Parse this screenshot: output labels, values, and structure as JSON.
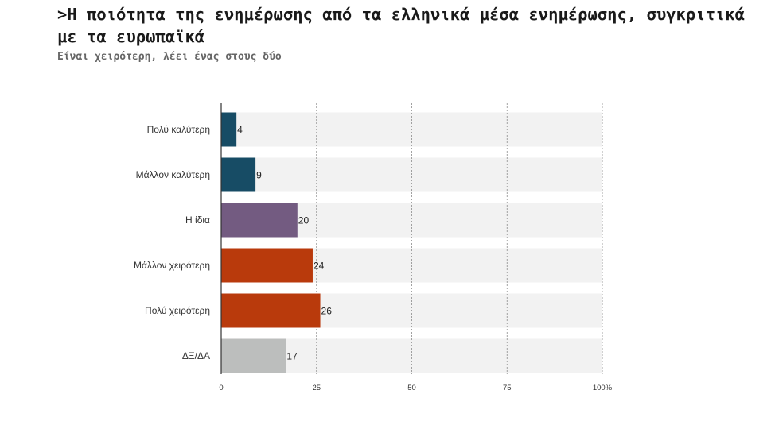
{
  "title": ">Η ποιότητα της ενημέρωσης από τα ελληνικά μέσα ενημέρωσης, συγκριτικά με τα ευρωπαϊκά",
  "subtitle": "Είναι χειρότερη, λέει ένας στους δύο",
  "chart_data": {
    "type": "bar",
    "orientation": "horizontal",
    "title": ">Η ποιότητα της ενημέρωσης από τα ελληνικά μέσα ενημέρωσης, συγκριτικά με τα ευρωπαϊκά",
    "subtitle": "Είναι χειρότερη, λέει ένας στους δύο",
    "categories": [
      "Πολύ καλύτερη",
      "Μάλλον καλύτερη",
      "Η ίδια",
      "Μάλλον χειρότερη",
      "Πολύ χειρότερη",
      "ΔΞ/ΔΑ"
    ],
    "values": [
      4,
      9,
      20,
      24,
      26,
      17
    ],
    "colors": [
      "#174c65",
      "#174c65",
      "#735b81",
      "#b93a0c",
      "#b93a0c",
      "#bcbebd"
    ],
    "track_color": "#f2f2f2",
    "xlim": [
      0,
      100
    ],
    "xticks": [
      0,
      25,
      50,
      75,
      100
    ],
    "xtick_labels": [
      "0",
      "25",
      "50",
      "75",
      "100%"
    ],
    "xlabel": "",
    "ylabel": "",
    "grid": "vertical dashed"
  }
}
